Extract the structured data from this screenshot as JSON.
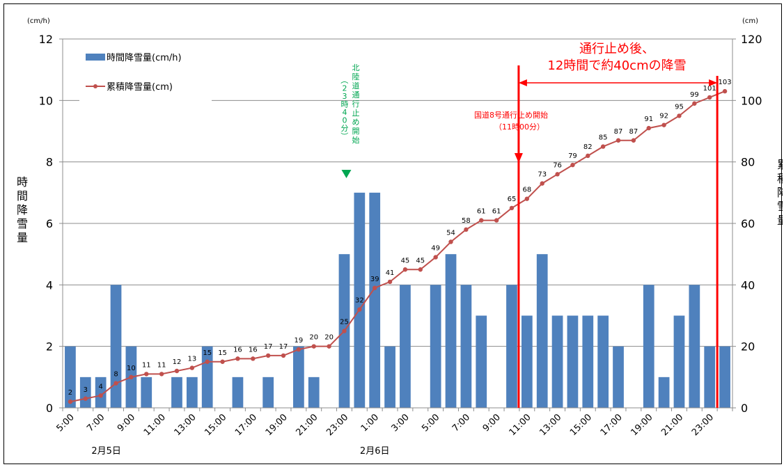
{
  "chart_data": {
    "type": "bar+line",
    "categories": [
      "5:00",
      "6:00",
      "7:00",
      "8:00",
      "9:00",
      "10:00",
      "11:00",
      "12:00",
      "13:00",
      "14:00",
      "15:00",
      "16:00",
      "17:00",
      "18:00",
      "19:00",
      "20:00",
      "21:00",
      "22:00",
      "23:00",
      "0:00",
      "1:00",
      "2:00",
      "3:00",
      "4:00",
      "5:00",
      "6:00",
      "7:00",
      "8:00",
      "9:00",
      "10:00",
      "11:00",
      "12:00",
      "13:00",
      "14:00",
      "15:00",
      "16:00",
      "17:00",
      "18:00",
      "19:00",
      "20:00",
      "21:00",
      "22:00",
      "23:00",
      "0:00"
    ],
    "x_tick_labels": [
      "5:00",
      "7:00",
      "9:00",
      "11:00",
      "13:00",
      "15:00",
      "17:00",
      "19:00",
      "21:00",
      "23:00",
      "1:00",
      "3:00",
      "5:00",
      "7:00",
      "9:00",
      "11:00",
      "13:00",
      "15:00",
      "17:00",
      "19:00",
      "21:00",
      "23:00"
    ],
    "date_labels": [
      "2月5日",
      "2月6日"
    ],
    "series": [
      {
        "name": "時間降雪量(cm/h)",
        "kind": "bar",
        "axis": "left",
        "color": "#4f81bd",
        "values": [
          2,
          1,
          1,
          4,
          2,
          1,
          0,
          1,
          1,
          2,
          0,
          1,
          0,
          1,
          0,
          2,
          1,
          0,
          5,
          7,
          7,
          2,
          4,
          0,
          4,
          5,
          4,
          3,
          0,
          4,
          3,
          5,
          3,
          3,
          3,
          3,
          2,
          0,
          4,
          1,
          3,
          4,
          2,
          2
        ]
      },
      {
        "name": "累積降雪量(cm)",
        "kind": "line",
        "axis": "right",
        "color": "#c0504d",
        "values": [
          2,
          3,
          4,
          8,
          10,
          11,
          11,
          12,
          13,
          15,
          15,
          16,
          16,
          17,
          17,
          19,
          20,
          20,
          25,
          32,
          39,
          41,
          45,
          45,
          49,
          54,
          58,
          61,
          61,
          65,
          68,
          73,
          76,
          79,
          82,
          85,
          87,
          87,
          91,
          92,
          95,
          99,
          101,
          103
        ]
      }
    ],
    "left_axis": {
      "unit": "(cm/h)",
      "label": "時間降雪量",
      "ylim": [
        0,
        12
      ],
      "ticks": [
        "0",
        "2",
        "4",
        "6",
        "8",
        "10",
        "12"
      ]
    },
    "right_axis": {
      "unit": "(cm)",
      "label": "累積降雪量",
      "ylim": [
        0,
        120
      ],
      "ticks": [
        "0",
        "20",
        "40",
        "60",
        "80",
        "100",
        "120"
      ]
    },
    "grid": true,
    "legend_position": "top-left",
    "annotations": {
      "hokuriku_closure": {
        "text": "北陸道通行止め開始",
        "time": "（23時40分）",
        "color": "#00a651"
      },
      "route8_closure": {
        "line1": "国道8号通行止め開始",
        "line2": "（11時00分）",
        "color": "#ff0000"
      },
      "after_closure": {
        "line1": "通行止め後、",
        "line2": "12時間で約40cmの降雪",
        "color": "#ff0000"
      }
    }
  }
}
